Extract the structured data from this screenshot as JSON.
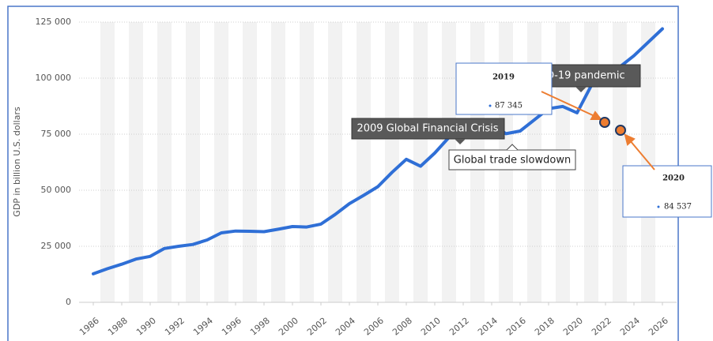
{
  "chart_data": {
    "type": "line",
    "y_axis_label": "GDP in billion U.S. dollars",
    "x": [
      1986,
      1987,
      1988,
      1989,
      1990,
      1991,
      1992,
      1993,
      1994,
      1995,
      1996,
      1997,
      1998,
      1999,
      2000,
      2001,
      2002,
      2003,
      2004,
      2005,
      2006,
      2007,
      2008,
      2009,
      2010,
      2011,
      2012,
      2013,
      2014,
      2015,
      2016,
      2017,
      2018,
      2019,
      2020,
      2021,
      2022,
      2023,
      2024,
      2025,
      2026
    ],
    "values": [
      12700,
      15000,
      17000,
      19300,
      20500,
      24000,
      25000,
      25800,
      27800,
      31000,
      31800,
      31700,
      31500,
      32600,
      33800,
      33600,
      34900,
      39200,
      44000,
      47700,
      51600,
      58000,
      63800,
      60700,
      66600,
      73600,
      75000,
      77400,
      79600,
      75200,
      76400,
      81400,
      86400,
      87345,
      84537,
      96700,
      100900,
      105000,
      110000,
      116000,
      122000
    ],
    "color": "#2f6fd6",
    "xlim": [
      1985,
      2027
    ],
    "xticks": [
      1986,
      1988,
      1990,
      1992,
      1994,
      1996,
      1998,
      2000,
      2002,
      2004,
      2006,
      2008,
      2010,
      2012,
      2014,
      2016,
      2018,
      2020,
      2022,
      2024,
      2026
    ],
    "ylim": [
      0,
      125000
    ],
    "yticks": [
      0,
      {
        "value": 25000,
        "label": "25 000"
      },
      {
        "value": 50000,
        "label": "50 000"
      },
      {
        "value": 75000,
        "label": "75 000"
      },
      {
        "value": 100000,
        "label": "100 000"
      },
      {
        "value": 125000,
        "label": "125 000"
      }
    ],
    "grid": true,
    "annotations": [
      "2009 Global Financial Crisis",
      "Global trade slowdown",
      "COVID-19 pandemic"
    ],
    "tooltips": [
      {
        "title": "2019",
        "text": "87 345"
      },
      {
        "title": "2020",
        "text": "84 537"
      }
    ]
  }
}
